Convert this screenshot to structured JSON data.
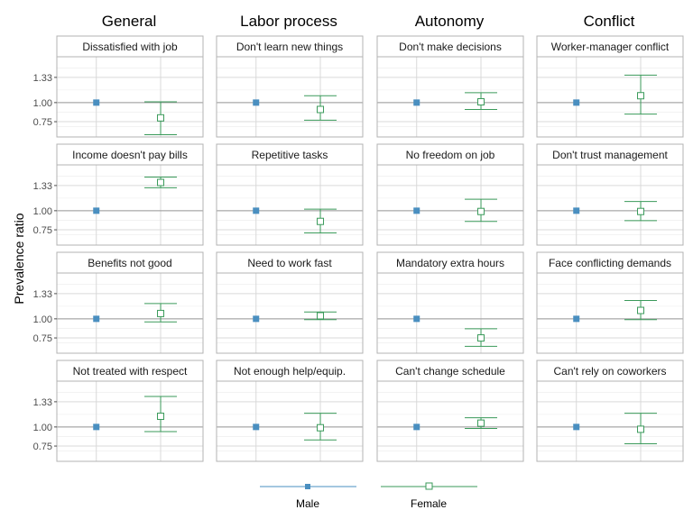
{
  "chart_data": {
    "type": "scatter",
    "ylabel": "Prevalence ratio",
    "y_ticks": [
      "1.33",
      "1.00",
      "0.75"
    ],
    "ylim": [
      0.55,
      1.6
    ],
    "reference_line": 1.0,
    "grid": true,
    "legend_placement": "bottom",
    "columns": [
      "General",
      "Labor process",
      "Autonomy",
      "Conflict"
    ],
    "series": [
      {
        "name": "Male",
        "color": "#4a8fc0",
        "marker": "filled-square"
      },
      {
        "name": "Female",
        "color": "#3a9a5a",
        "marker": "open-square"
      }
    ],
    "panels": [
      [
        {
          "label": "Dissatisfied with job",
          "male": 1.0,
          "female": 0.8,
          "female_ci": [
            0.58,
            1.01
          ]
        },
        {
          "label": "Income doesn't pay bills",
          "male": 1.0,
          "female": 1.37,
          "female_ci": [
            1.3,
            1.44
          ]
        },
        {
          "label": "Benefits not good",
          "male": 1.0,
          "female": 1.07,
          "female_ci": [
            0.96,
            1.2
          ]
        },
        {
          "label": "Not treated with respect",
          "male": 1.0,
          "female": 1.14,
          "female_ci": [
            0.94,
            1.4
          ]
        }
      ],
      [
        {
          "label": "Don't learn new things",
          "male": 1.0,
          "female": 0.91,
          "female_ci": [
            0.77,
            1.09
          ]
        },
        {
          "label": "Repetitive tasks",
          "male": 1.0,
          "female": 0.86,
          "female_ci": [
            0.71,
            1.02
          ]
        },
        {
          "label": "Need to work fast",
          "male": 1.0,
          "female": 1.04,
          "female_ci": [
            0.99,
            1.09
          ]
        },
        {
          "label": "Not enough help/equip.",
          "male": 1.0,
          "female": 0.99,
          "female_ci": [
            0.83,
            1.18
          ]
        }
      ],
      [
        {
          "label": "Don't make decisions",
          "male": 1.0,
          "female": 1.01,
          "female_ci": [
            0.91,
            1.13
          ]
        },
        {
          "label": "No freedom on job",
          "male": 1.0,
          "female": 0.99,
          "female_ci": [
            0.86,
            1.15
          ]
        },
        {
          "label": "Mandatory extra hours",
          "male": 1.0,
          "female": 0.75,
          "female_ci": [
            0.64,
            0.87
          ]
        },
        {
          "label": "Can't change schedule",
          "male": 1.0,
          "female": 1.05,
          "female_ci": [
            0.98,
            1.12
          ]
        }
      ],
      [
        {
          "label": "Worker-manager conflict",
          "male": 1.0,
          "female": 1.09,
          "female_ci": [
            0.85,
            1.36
          ]
        },
        {
          "label": "Don't trust management",
          "male": 1.0,
          "female": 0.99,
          "female_ci": [
            0.87,
            1.12
          ]
        },
        {
          "label": "Face conflicting demands",
          "male": 1.0,
          "female": 1.11,
          "female_ci": [
            0.99,
            1.24
          ]
        },
        {
          "label": "Can't rely on coworkers",
          "male": 1.0,
          "female": 0.97,
          "female_ci": [
            0.78,
            1.18
          ]
        }
      ]
    ]
  }
}
